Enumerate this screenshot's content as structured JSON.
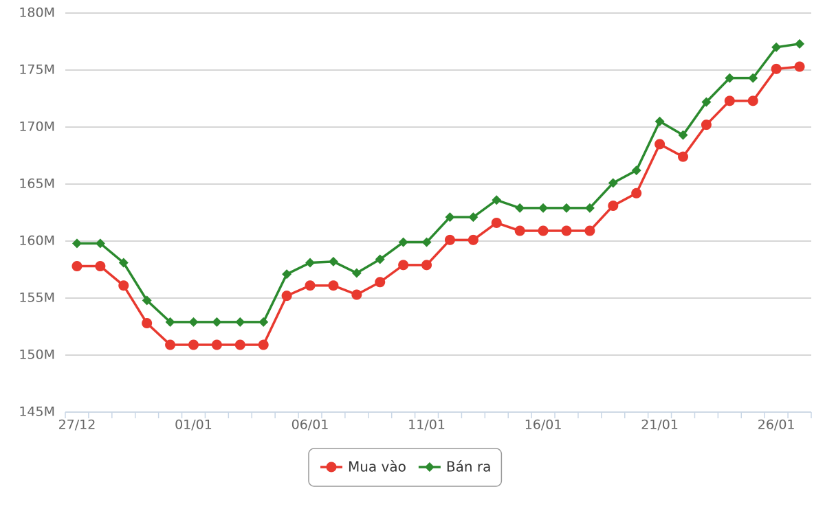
{
  "chart_data": {
    "type": "line",
    "categories": [
      "27/12",
      null,
      null,
      null,
      null,
      "01/01",
      null,
      null,
      null,
      null,
      "06/01",
      null,
      null,
      null,
      null,
      "11/01",
      null,
      null,
      null,
      null,
      "16/01",
      null,
      null,
      null,
      null,
      "21/01",
      null,
      null,
      null,
      null,
      "26/01",
      null
    ],
    "series": [
      {
        "name": "Mua vào",
        "color": "#e8392f",
        "marker": "circle",
        "values": [
          157.8,
          157.8,
          156.1,
          152.8,
          150.9,
          150.9,
          150.9,
          150.9,
          150.9,
          155.2,
          156.1,
          156.1,
          155.3,
          156.4,
          157.9,
          157.9,
          160.1,
          160.1,
          161.6,
          160.9,
          160.9,
          160.9,
          160.9,
          163.1,
          164.2,
          168.5,
          167.4,
          170.2,
          172.3,
          172.3,
          175.1,
          175.3
        ]
      },
      {
        "name": "Bán ra",
        "color": "#2b8a2e",
        "marker": "diamond",
        "values": [
          159.8,
          159.8,
          158.1,
          154.8,
          152.9,
          152.9,
          152.9,
          152.9,
          152.9,
          157.1,
          158.1,
          158.2,
          157.2,
          158.4,
          159.9,
          159.9,
          162.1,
          162.1,
          163.6,
          162.9,
          162.9,
          162.9,
          162.9,
          165.1,
          166.2,
          170.5,
          169.3,
          172.2,
          174.3,
          174.3,
          177.0,
          177.3
        ]
      }
    ],
    "ylim": [
      145,
      180
    ],
    "yticks": [
      {
        "value": 145,
        "label": "145M"
      },
      {
        "value": 150,
        "label": "150M"
      },
      {
        "value": 155,
        "label": "155M"
      },
      {
        "value": 160,
        "label": "160M"
      },
      {
        "value": 165,
        "label": "165M"
      },
      {
        "value": 170,
        "label": "170M"
      },
      {
        "value": 175,
        "label": "175M"
      },
      {
        "value": 180,
        "label": "180M"
      }
    ],
    "grid": true,
    "legend": "bottom"
  }
}
